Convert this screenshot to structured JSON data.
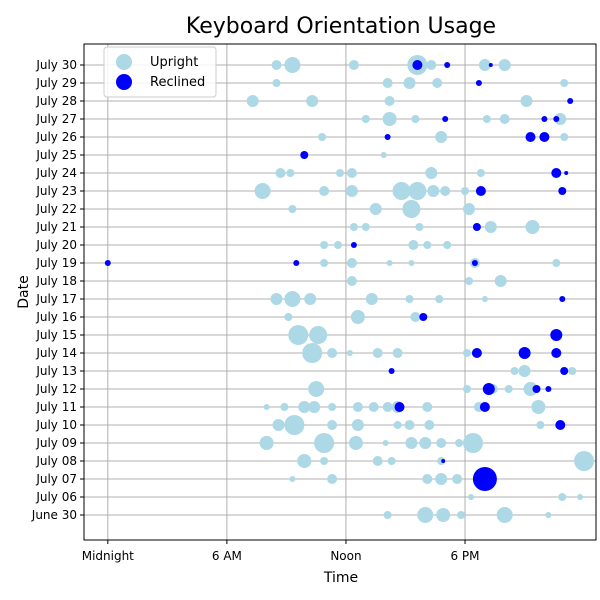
{
  "chart_data": {
    "type": "scatter",
    "title": "Keyboard Orientation Usage",
    "xlabel": "Time",
    "ylabel": "Date",
    "x_unit": "hours",
    "xlim": [
      -1.2,
      24.6
    ],
    "x_ticks": [
      {
        "value": 0,
        "label": "Midnight"
      },
      {
        "value": 6,
        "label": "6 AM"
      },
      {
        "value": 12,
        "label": "Noon"
      },
      {
        "value": 18,
        "label": "6 PM"
      }
    ],
    "dates": [
      "June 30",
      "July 06",
      "July 07",
      "July 08",
      "July 09",
      "July 10",
      "July 11",
      "July 12",
      "July 13",
      "July 14",
      "July 15",
      "July 16",
      "July 17",
      "July 18",
      "July 19",
      "July 20",
      "July 21",
      "July 22",
      "July 23",
      "July 24",
      "July 25",
      "July 26",
      "July 27",
      "July 28",
      "July 29",
      "July 30"
    ],
    "grid": true,
    "legend": {
      "placement": "top-left",
      "entries": [
        "Upright",
        "Reclined"
      ]
    },
    "colors": {
      "Upright": "#add8e6",
      "Reclined": "#0000ff"
    },
    "series": [
      {
        "name": "Upright",
        "points": [
          {
            "date": "July 30",
            "time": 8.5,
            "size": 5
          },
          {
            "date": "July 30",
            "time": 9.3,
            "size": 8
          },
          {
            "date": "July 30",
            "time": 12.4,
            "size": 5
          },
          {
            "date": "July 30",
            "time": 15.6,
            "size": 10
          },
          {
            "date": "July 30",
            "time": 16.3,
            "size": 5
          },
          {
            "date": "July 30",
            "time": 19.0,
            "size": 6
          },
          {
            "date": "July 30",
            "time": 20.0,
            "size": 6
          },
          {
            "date": "July 29",
            "time": 8.5,
            "size": 4
          },
          {
            "date": "July 29",
            "time": 14.1,
            "size": 5
          },
          {
            "date": "July 29",
            "time": 15.2,
            "size": 6
          },
          {
            "date": "July 29",
            "time": 16.6,
            "size": 5
          },
          {
            "date": "July 29",
            "time": 23.0,
            "size": 4
          },
          {
            "date": "July 28",
            "time": 7.3,
            "size": 6
          },
          {
            "date": "July 28",
            "time": 10.3,
            "size": 6
          },
          {
            "date": "July 28",
            "time": 14.2,
            "size": 5
          },
          {
            "date": "July 28",
            "time": 21.1,
            "size": 6
          },
          {
            "date": "July 27",
            "time": 13.0,
            "size": 4
          },
          {
            "date": "July 27",
            "time": 14.2,
            "size": 7
          },
          {
            "date": "July 27",
            "time": 15.5,
            "size": 4
          },
          {
            "date": "July 27",
            "time": 19.1,
            "size": 4
          },
          {
            "date": "July 27",
            "time": 20.0,
            "size": 5
          },
          {
            "date": "July 27",
            "time": 22.8,
            "size": 6
          },
          {
            "date": "July 26",
            "time": 10.8,
            "size": 4
          },
          {
            "date": "July 26",
            "time": 16.8,
            "size": 6
          },
          {
            "date": "July 26",
            "time": 23.0,
            "size": 4
          },
          {
            "date": "July 25",
            "time": 13.9,
            "size": 3
          },
          {
            "date": "July 24",
            "time": 8.7,
            "size": 5
          },
          {
            "date": "July 24",
            "time": 9.2,
            "size": 4
          },
          {
            "date": "July 24",
            "time": 11.7,
            "size": 4
          },
          {
            "date": "July 24",
            "time": 12.3,
            "size": 5
          },
          {
            "date": "July 24",
            "time": 16.3,
            "size": 6
          },
          {
            "date": "July 24",
            "time": 18.8,
            "size": 4
          },
          {
            "date": "July 23",
            "time": 7.8,
            "size": 8
          },
          {
            "date": "July 23",
            "time": 10.9,
            "size": 5
          },
          {
            "date": "July 23",
            "time": 12.3,
            "size": 6
          },
          {
            "date": "July 23",
            "time": 14.8,
            "size": 9
          },
          {
            "date": "July 23",
            "time": 15.6,
            "size": 9
          },
          {
            "date": "July 23",
            "time": 16.4,
            "size": 6
          },
          {
            "date": "July 23",
            "time": 17.0,
            "size": 5
          },
          {
            "date": "July 23",
            "time": 18.0,
            "size": 4
          },
          {
            "date": "July 22",
            "time": 9.3,
            "size": 4
          },
          {
            "date": "July 22",
            "time": 13.5,
            "size": 6
          },
          {
            "date": "July 22",
            "time": 15.3,
            "size": 9
          },
          {
            "date": "July 22",
            "time": 18.2,
            "size": 6
          },
          {
            "date": "July 21",
            "time": 12.4,
            "size": 4
          },
          {
            "date": "July 21",
            "time": 13.0,
            "size": 4
          },
          {
            "date": "July 21",
            "time": 15.7,
            "size": 4
          },
          {
            "date": "July 21",
            "time": 19.3,
            "size": 6
          },
          {
            "date": "July 21",
            "time": 21.4,
            "size": 7
          },
          {
            "date": "July 20",
            "time": 10.9,
            "size": 4
          },
          {
            "date": "July 20",
            "time": 11.6,
            "size": 4
          },
          {
            "date": "July 20",
            "time": 15.4,
            "size": 5
          },
          {
            "date": "July 20",
            "time": 16.1,
            "size": 4
          },
          {
            "date": "July 20",
            "time": 17.1,
            "size": 4
          },
          {
            "date": "July 19",
            "time": 10.9,
            "size": 4
          },
          {
            "date": "July 19",
            "time": 12.3,
            "size": 5
          },
          {
            "date": "July 19",
            "time": 14.2,
            "size": 3
          },
          {
            "date": "July 19",
            "time": 15.3,
            "size": 3
          },
          {
            "date": "July 19",
            "time": 18.5,
            "size": 5
          },
          {
            "date": "July 19",
            "time": 22.6,
            "size": 4
          },
          {
            "date": "July 18",
            "time": 12.3,
            "size": 5
          },
          {
            "date": "July 18",
            "time": 19.8,
            "size": 6
          },
          {
            "date": "July 18",
            "time": 18.2,
            "size": 4
          },
          {
            "date": "July 17",
            "time": 8.5,
            "size": 6
          },
          {
            "date": "July 17",
            "time": 9.3,
            "size": 8
          },
          {
            "date": "July 17",
            "time": 10.2,
            "size": 6
          },
          {
            "date": "July 17",
            "time": 13.3,
            "size": 6
          },
          {
            "date": "July 17",
            "time": 15.2,
            "size": 4
          },
          {
            "date": "July 17",
            "time": 16.7,
            "size": 4
          },
          {
            "date": "July 17",
            "time": 19.0,
            "size": 3
          },
          {
            "date": "July 16",
            "time": 9.1,
            "size": 4
          },
          {
            "date": "July 16",
            "time": 12.6,
            "size": 7
          },
          {
            "date": "July 16",
            "time": 15.5,
            "size": 5
          },
          {
            "date": "July 15",
            "time": 9.6,
            "size": 10
          },
          {
            "date": "July 15",
            "time": 10.6,
            "size": 9
          },
          {
            "date": "July 14",
            "time": 10.3,
            "size": 10
          },
          {
            "date": "July 14",
            "time": 11.3,
            "size": 5
          },
          {
            "date": "July 14",
            "time": 12.2,
            "size": 3
          },
          {
            "date": "July 14",
            "time": 13.6,
            "size": 5
          },
          {
            "date": "July 14",
            "time": 14.6,
            "size": 5
          },
          {
            "date": "July 14",
            "time": 18.1,
            "size": 4
          },
          {
            "date": "July 14",
            "time": 22.7,
            "size": 3
          },
          {
            "date": "July 13",
            "time": 20.5,
            "size": 4
          },
          {
            "date": "July 13",
            "time": 21.0,
            "size": 6
          },
          {
            "date": "July 13",
            "time": 23.4,
            "size": 4
          },
          {
            "date": "July 12",
            "time": 10.5,
            "size": 8
          },
          {
            "date": "July 12",
            "time": 18.1,
            "size": 4
          },
          {
            "date": "July 12",
            "time": 19.4,
            "size": 5
          },
          {
            "date": "July 12",
            "time": 20.2,
            "size": 4
          },
          {
            "date": "July 12",
            "time": 21.3,
            "size": 7
          },
          {
            "date": "July 11",
            "time": 8.0,
            "size": 3
          },
          {
            "date": "July 11",
            "time": 8.9,
            "size": 4
          },
          {
            "date": "July 11",
            "time": 9.9,
            "size": 6
          },
          {
            "date": "July 11",
            "time": 10.4,
            "size": 6
          },
          {
            "date": "July 11",
            "time": 11.3,
            "size": 4
          },
          {
            "date": "July 11",
            "time": 12.6,
            "size": 5
          },
          {
            "date": "July 11",
            "time": 13.4,
            "size": 5
          },
          {
            "date": "July 11",
            "time": 14.1,
            "size": 5
          },
          {
            "date": "July 11",
            "time": 14.6,
            "size": 6
          },
          {
            "date": "July 11",
            "time": 16.1,
            "size": 5
          },
          {
            "date": "July 11",
            "time": 18.7,
            "size": 5
          },
          {
            "date": "July 11",
            "time": 21.7,
            "size": 7
          },
          {
            "date": "July 10",
            "time": 8.6,
            "size": 6
          },
          {
            "date": "July 10",
            "time": 9.4,
            "size": 10
          },
          {
            "date": "July 10",
            "time": 11.3,
            "size": 5
          },
          {
            "date": "July 10",
            "time": 12.6,
            "size": 6
          },
          {
            "date": "July 10",
            "time": 14.6,
            "size": 4
          },
          {
            "date": "July 10",
            "time": 15.2,
            "size": 5
          },
          {
            "date": "July 10",
            "time": 16.2,
            "size": 5
          },
          {
            "date": "July 10",
            "time": 21.8,
            "size": 4
          },
          {
            "date": "July 09",
            "time": 8.0,
            "size": 7
          },
          {
            "date": "July 09",
            "time": 10.9,
            "size": 10
          },
          {
            "date": "July 09",
            "time": 12.5,
            "size": 7
          },
          {
            "date": "July 09",
            "time": 14.0,
            "size": 3
          },
          {
            "date": "July 09",
            "time": 15.3,
            "size": 6
          },
          {
            "date": "July 09",
            "time": 16.0,
            "size": 6
          },
          {
            "date": "July 09",
            "time": 16.8,
            "size": 5
          },
          {
            "date": "July 09",
            "time": 17.7,
            "size": 4
          },
          {
            "date": "July 09",
            "time": 18.4,
            "size": 10
          },
          {
            "date": "July 08",
            "time": 9.9,
            "size": 7
          },
          {
            "date": "July 08",
            "time": 10.9,
            "size": 4
          },
          {
            "date": "July 08",
            "time": 13.6,
            "size": 5
          },
          {
            "date": "July 08",
            "time": 14.3,
            "size": 4
          },
          {
            "date": "July 08",
            "time": 16.8,
            "size": 4
          },
          {
            "date": "July 08",
            "time": 24.0,
            "size": 10
          },
          {
            "date": "July 07",
            "time": 9.3,
            "size": 3
          },
          {
            "date": "July 07",
            "time": 11.3,
            "size": 5
          },
          {
            "date": "July 07",
            "time": 16.1,
            "size": 5
          },
          {
            "date": "July 07",
            "time": 16.8,
            "size": 6
          },
          {
            "date": "July 07",
            "time": 17.6,
            "size": 5
          },
          {
            "date": "July 06",
            "time": 18.3,
            "size": 3
          },
          {
            "date": "July 06",
            "time": 22.9,
            "size": 4
          },
          {
            "date": "July 06",
            "time": 23.8,
            "size": 3
          },
          {
            "date": "June 30",
            "time": 14.1,
            "size": 4
          },
          {
            "date": "June 30",
            "time": 16.0,
            "size": 8
          },
          {
            "date": "June 30",
            "time": 16.9,
            "size": 7
          },
          {
            "date": "June 30",
            "time": 17.8,
            "size": 4
          },
          {
            "date": "June 30",
            "time": 20.0,
            "size": 8
          },
          {
            "date": "June 30",
            "time": 22.2,
            "size": 3
          }
        ]
      },
      {
        "name": "Reclined",
        "points": [
          {
            "date": "July 30",
            "time": 15.6,
            "size": 5
          },
          {
            "date": "July 30",
            "time": 17.1,
            "size": 3
          },
          {
            "date": "July 30",
            "time": 19.3,
            "size": 2
          },
          {
            "date": "July 29",
            "time": 18.7,
            "size": 3
          },
          {
            "date": "July 28",
            "time": 23.3,
            "size": 3
          },
          {
            "date": "July 27",
            "time": 17.0,
            "size": 3
          },
          {
            "date": "July 27",
            "time": 22.0,
            "size": 3
          },
          {
            "date": "July 27",
            "time": 22.6,
            "size": 3
          },
          {
            "date": "July 26",
            "time": 14.1,
            "size": 3
          },
          {
            "date": "July 26",
            "time": 21.3,
            "size": 5
          },
          {
            "date": "July 26",
            "time": 22.0,
            "size": 5
          },
          {
            "date": "July 25",
            "time": 9.9,
            "size": 4
          },
          {
            "date": "July 24",
            "time": 22.6,
            "size": 5
          },
          {
            "date": "July 24",
            "time": 23.1,
            "size": 2
          },
          {
            "date": "July 23",
            "time": 18.8,
            "size": 5
          },
          {
            "date": "July 23",
            "time": 22.9,
            "size": 4
          },
          {
            "date": "July 21",
            "time": 18.6,
            "size": 4
          },
          {
            "date": "July 20",
            "time": 12.4,
            "size": 3
          },
          {
            "date": "July 19",
            "time": 0.0,
            "size": 3
          },
          {
            "date": "July 19",
            "time": 9.5,
            "size": 3
          },
          {
            "date": "July 19",
            "time": 18.5,
            "size": 3
          },
          {
            "date": "July 17",
            "time": 22.9,
            "size": 3
          },
          {
            "date": "July 16",
            "time": 15.9,
            "size": 4
          },
          {
            "date": "July 15",
            "time": 22.6,
            "size": 6
          },
          {
            "date": "July 14",
            "time": 18.6,
            "size": 5
          },
          {
            "date": "July 14",
            "time": 21.0,
            "size": 6
          },
          {
            "date": "July 14",
            "time": 22.6,
            "size": 5
          },
          {
            "date": "July 13",
            "time": 14.3,
            "size": 3
          },
          {
            "date": "July 13",
            "time": 23.0,
            "size": 4
          },
          {
            "date": "July 12",
            "time": 19.2,
            "size": 6
          },
          {
            "date": "July 12",
            "time": 21.6,
            "size": 4
          },
          {
            "date": "July 12",
            "time": 22.2,
            "size": 3
          },
          {
            "date": "July 11",
            "time": 14.7,
            "size": 5
          },
          {
            "date": "July 11",
            "time": 19.0,
            "size": 5
          },
          {
            "date": "July 10",
            "time": 22.8,
            "size": 5
          },
          {
            "date": "July 08",
            "time": 16.9,
            "size": 2
          },
          {
            "date": "July 07",
            "time": 19.0,
            "size": 12
          }
        ]
      }
    ]
  }
}
